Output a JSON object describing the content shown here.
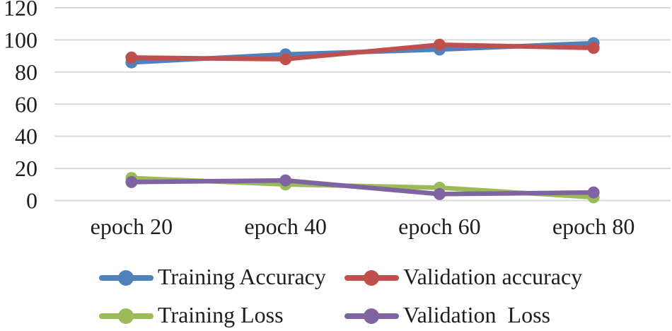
{
  "chart_data": {
    "type": "line",
    "title": "",
    "xlabel": "",
    "ylabel": "",
    "categories": [
      "epoch 20",
      "epoch 40",
      "epoch 60",
      "epoch 80"
    ],
    "series": [
      {
        "name": "Training Accuracy",
        "color": "#4F81BD",
        "values": [
          86,
          91,
          94,
          98
        ]
      },
      {
        "name": "Validation accuracy",
        "color": "#C0504D",
        "values": [
          89,
          88,
          97,
          95
        ]
      },
      {
        "name": "Training Loss",
        "color": "#9BBB59",
        "values": [
          14,
          10,
          8,
          2
        ]
      },
      {
        "name": "Validation  Loss",
        "color": "#8064A2",
        "values": [
          11.5,
          12.5,
          4,
          5
        ]
      }
    ],
    "ylim": [
      0,
      120
    ],
    "yticks": [
      0,
      20,
      40,
      60,
      80,
      100,
      120
    ],
    "grid": true,
    "legend_position": "bottom",
    "colors": {
      "gridline": "#D9D9D9",
      "text": "#1E1E1E",
      "background": "#FFFFFF"
    }
  }
}
